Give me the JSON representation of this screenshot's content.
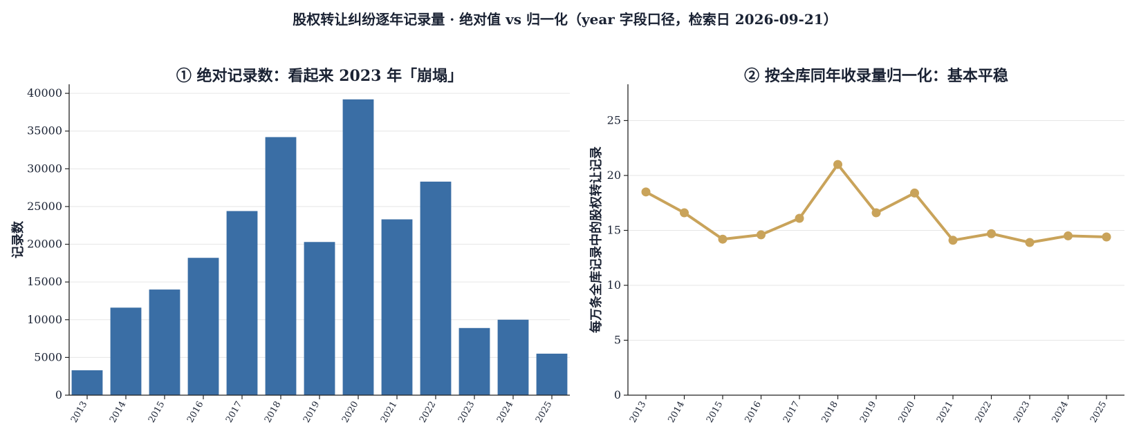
{
  "figure_title": "股权转让纠纷逐年记录量 · 绝对值 vs 归一化（year 字段口径，检索日 2026-09-21）",
  "colors": {
    "bar": "#3a6ea5",
    "line": "#c9a35a",
    "grid": "#e6e6e6",
    "axis": "#222222"
  },
  "chart_data": [
    {
      "type": "bar",
      "title": "① 绝对记录数：看起来 2023 年「崩塌」",
      "xlabel": "",
      "ylabel": "记录数",
      "categories": [
        "2013",
        "2014",
        "2015",
        "2016",
        "2017",
        "2018",
        "2019",
        "2020",
        "2021",
        "2022",
        "2023",
        "2024",
        "2025"
      ],
      "values": [
        3300,
        11600,
        14000,
        18200,
        24400,
        34200,
        20300,
        39200,
        23300,
        28300,
        8900,
        10000,
        5500
      ],
      "ylim": [
        0,
        41200
      ],
      "yticks": [
        0,
        5000,
        10000,
        15000,
        20000,
        25000,
        30000,
        35000,
        40000
      ],
      "grid": "horizontal",
      "legend": "none"
    },
    {
      "type": "line",
      "title": "② 按全库同年收录量归一化：基本平稳",
      "xlabel": "",
      "ylabel": "每万条全库记录中的股权转让记录",
      "categories": [
        "2013",
        "2014",
        "2015",
        "2016",
        "2017",
        "2018",
        "2019",
        "2020",
        "2021",
        "2022",
        "2023",
        "2024",
        "2025"
      ],
      "values": [
        18.5,
        16.6,
        14.2,
        14.6,
        16.1,
        21.0,
        16.6,
        18.4,
        14.1,
        14.7,
        13.9,
        14.5,
        14.4
      ],
      "ylim": [
        0,
        28.3
      ],
      "yticks": [
        0,
        5,
        10,
        15,
        20,
        25
      ],
      "grid": "horizontal",
      "legend": "none"
    }
  ]
}
